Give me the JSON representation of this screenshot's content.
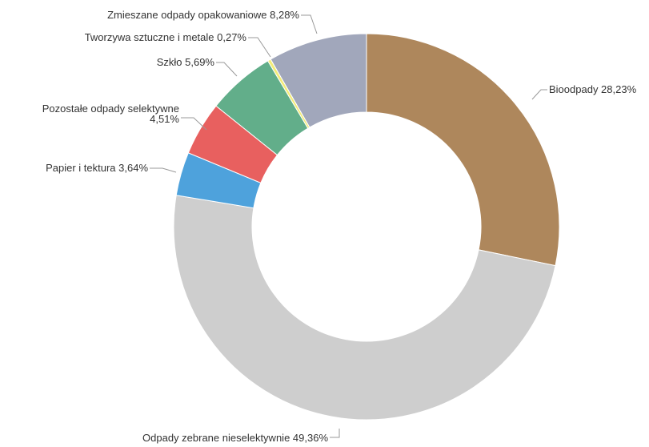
{
  "chart_data": {
    "type": "pie",
    "variant": "donut",
    "legend": "none",
    "slices": [
      {
        "name": "Bioodpady",
        "value": 28.23,
        "label": "Bioodpady 28,23%",
        "color": "#ae875c"
      },
      {
        "name": "Odpady zebrane nieselektywnie",
        "value": 49.36,
        "label": "Odpady zebrane nieselektywnie 49,36%",
        "color": "#cecece"
      },
      {
        "name": "Papier i tektura",
        "value": 3.64,
        "label": "Papier i tektura 3,64%",
        "color": "#4ea2dc"
      },
      {
        "name": "Pozostałe odpady selektywne",
        "value": 4.51,
        "label": "Pozostałe odpady selektywne 4,51%",
        "label_lines": [
          "Pozostałe odpady selektywne",
          "4,51%"
        ],
        "color": "#e8605f"
      },
      {
        "name": "Szkło",
        "value": 5.69,
        "label": "Szkło 5,69%",
        "color": "#62ae8a"
      },
      {
        "name": "Tworzywa sztuczne i metale",
        "value": 0.27,
        "label": "Tworzywa sztuczne i metale 0,27%",
        "color": "#f3ec78"
      },
      {
        "name": "Zmieszane odpady opakowaniowe",
        "value": 8.28,
        "label": "Zmieszane odpady opakowaniowe 8,28%",
        "color": "#a1a7bb"
      }
    ]
  }
}
